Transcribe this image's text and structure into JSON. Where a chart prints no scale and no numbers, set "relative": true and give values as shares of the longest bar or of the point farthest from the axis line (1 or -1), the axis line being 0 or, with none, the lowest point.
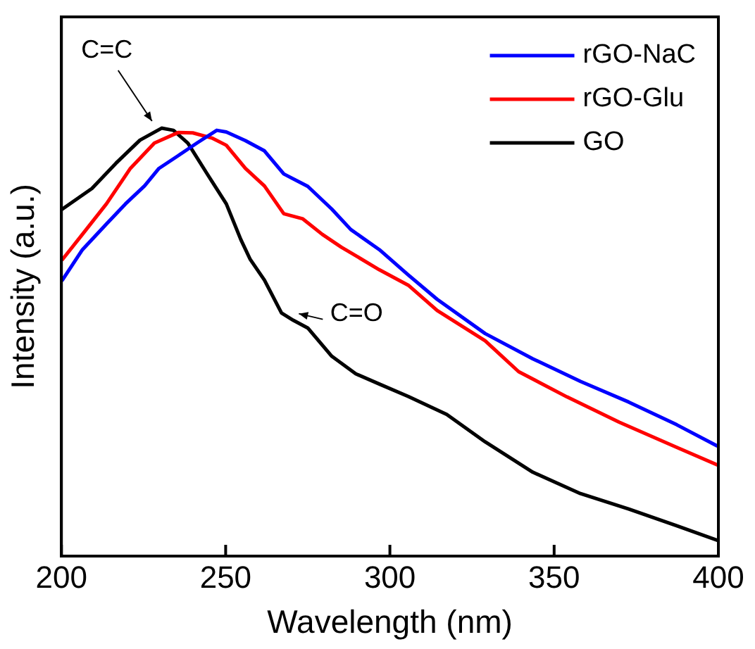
{
  "chart_data": {
    "type": "line",
    "xlabel": "Wavelength (nm)",
    "ylabel": "Intensity (a.u.)",
    "relative": true,
    "xlim": [
      200,
      400
    ],
    "xticks": [
      200,
      250,
      300,
      350,
      400
    ],
    "legend": "top right",
    "grid": false,
    "marker": "none",
    "line_style": "solid",
    "annotations": [
      {
        "text": "C=C",
        "x": 231,
        "y": 1
      },
      {
        "text": "C=O",
        "x": 271,
        "y": 0.55
      }
    ],
    "series": [
      {
        "name": "rGO-NaC",
        "color": "#0000ff",
        "x": [
          200.3,
          206.4,
          213.7,
          219.5,
          225.3,
          229.7,
          235.6,
          241.4,
          247.3,
          250.2,
          256,
          261.8,
          267.7,
          275,
          282.3,
          288.1,
          296.8,
          305.6,
          314.4,
          329,
          343.5,
          358.1,
          372.7,
          387.3,
          400
        ],
        "values": [
          0.645,
          0.716,
          0.776,
          0.823,
          0.865,
          0.906,
          0.936,
          0.966,
          0.995,
          0.991,
          0.971,
          0.947,
          0.893,
          0.864,
          0.811,
          0.763,
          0.716,
          0.657,
          0.6,
          0.52,
          0.461,
          0.408,
          0.36,
          0.307,
          0.256
        ]
      },
      {
        "name": "rGO-Glu",
        "color": "#ff0000",
        "x": [
          200.3,
          206.4,
          213.7,
          221,
          228.3,
          235.6,
          240,
          245.8,
          250.2,
          256,
          261.8,
          267.7,
          273.5,
          279.4,
          285.2,
          296.8,
          305.6,
          314.4,
          329,
          339.2,
          353.9,
          369.8,
          387.3,
          400
        ],
        "values": [
          0.693,
          0.752,
          0.823,
          0.906,
          0.965,
          0.99,
          0.989,
          0.977,
          0.96,
          0.906,
          0.865,
          0.8,
          0.788,
          0.752,
          0.722,
          0.669,
          0.633,
          0.574,
          0.503,
          0.431,
          0.372,
          0.313,
          0.254,
          0.212
        ]
      },
      {
        "name": "GO",
        "color": "#000000",
        "x": [
          200.3,
          209.3,
          216.6,
          223.9,
          230.5,
          234.1,
          238.5,
          244.3,
          250.2,
          254.6,
          257.5,
          261.8,
          267,
          270.6,
          275,
          282.3,
          289.6,
          296.8,
          305.6,
          317.3,
          329,
          343.5,
          358,
          372.7,
          387.3,
          400
        ],
        "values": [
          0.811,
          0.859,
          0.918,
          0.972,
          1,
          0.995,
          0.965,
          0.894,
          0.823,
          0.74,
          0.693,
          0.645,
          0.568,
          0.551,
          0.533,
          0.467,
          0.426,
          0.402,
          0.373,
          0.331,
          0.267,
          0.196,
          0.146,
          0.11,
          0.071,
          0.036
        ]
      }
    ]
  }
}
